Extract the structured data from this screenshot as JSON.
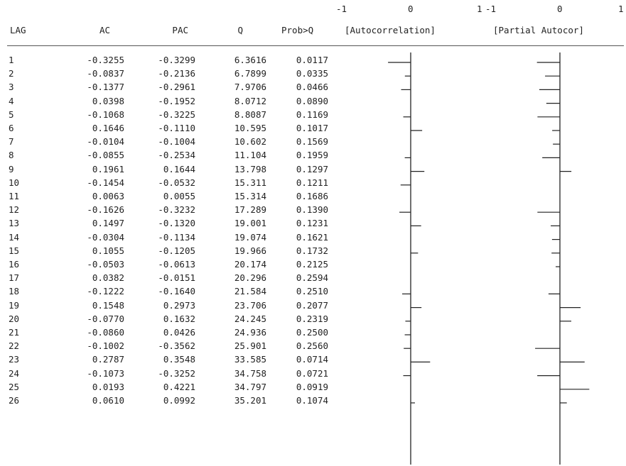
{
  "header": {
    "scale_ac": {
      "left": "-1",
      "mid": "0",
      "right": "1"
    },
    "scale_pac": {
      "left": "-1",
      "mid": "0",
      "right": "1"
    },
    "columns": {
      "lag": "LAG",
      "ac": "AC",
      "pac": "PAC",
      "q": "Q",
      "prob": "Prob>Q",
      "ac_plot": "[Autocorrelation]",
      "pac_plot": "[Partial Autocor]"
    }
  },
  "rows": [
    {
      "lag": "1",
      "ac": "-0.3255",
      "pac": "-0.3299",
      "q": "6.3616",
      "prob": "0.0117"
    },
    {
      "lag": "2",
      "ac": "-0.0837",
      "pac": "-0.2136",
      "q": "6.7899",
      "prob": "0.0335"
    },
    {
      "lag": "3",
      "ac": "-0.1377",
      "pac": "-0.2961",
      "q": "7.9706",
      "prob": "0.0466"
    },
    {
      "lag": "4",
      "ac": "0.0398",
      "pac": "-0.1952",
      "q": "8.0712",
      "prob": "0.0890"
    },
    {
      "lag": "5",
      "ac": "-0.1068",
      "pac": "-0.3225",
      "q": "8.8087",
      "prob": "0.1169"
    },
    {
      "lag": "6",
      "ac": "0.1646",
      "pac": "-0.1110",
      "q": "10.595",
      "prob": "0.1017"
    },
    {
      "lag": "7",
      "ac": "-0.0104",
      "pac": "-0.1004",
      "q": "10.602",
      "prob": "0.1569"
    },
    {
      "lag": "8",
      "ac": "-0.0855",
      "pac": "-0.2534",
      "q": "11.104",
      "prob": "0.1959"
    },
    {
      "lag": "9",
      "ac": "0.1961",
      "pac": "0.1644",
      "q": "13.798",
      "prob": "0.1297"
    },
    {
      "lag": "10",
      "ac": "-0.1454",
      "pac": "-0.0532",
      "q": "15.311",
      "prob": "0.1211"
    },
    {
      "lag": "11",
      "ac": "0.0063",
      "pac": "0.0055",
      "q": "15.314",
      "prob": "0.1686"
    },
    {
      "lag": "12",
      "ac": "-0.1626",
      "pac": "-0.3232",
      "q": "17.289",
      "prob": "0.1390"
    },
    {
      "lag": "13",
      "ac": "0.1497",
      "pac": "-0.1320",
      "q": "19.001",
      "prob": "0.1231"
    },
    {
      "lag": "14",
      "ac": "-0.0304",
      "pac": "-0.1134",
      "q": "19.074",
      "prob": "0.1621"
    },
    {
      "lag": "15",
      "ac": "0.1055",
      "pac": "-0.1205",
      "q": "19.966",
      "prob": "0.1732"
    },
    {
      "lag": "16",
      "ac": "-0.0503",
      "pac": "-0.0613",
      "q": "20.174",
      "prob": "0.2125"
    },
    {
      "lag": "17",
      "ac": "0.0382",
      "pac": "-0.0151",
      "q": "20.296",
      "prob": "0.2594"
    },
    {
      "lag": "18",
      "ac": "-0.1222",
      "pac": "-0.1640",
      "q": "21.584",
      "prob": "0.2510"
    },
    {
      "lag": "19",
      "ac": "0.1548",
      "pac": "0.2973",
      "q": "23.706",
      "prob": "0.2077"
    },
    {
      "lag": "20",
      "ac": "-0.0770",
      "pac": "0.1632",
      "q": "24.245",
      "prob": "0.2319"
    },
    {
      "lag": "21",
      "ac": "-0.0860",
      "pac": "0.0426",
      "q": "24.936",
      "prob": "0.2500"
    },
    {
      "lag": "22",
      "ac": "-0.1002",
      "pac": "-0.3562",
      "q": "25.901",
      "prob": "0.2560"
    },
    {
      "lag": "23",
      "ac": "0.2787",
      "pac": "0.3548",
      "q": "33.585",
      "prob": "0.0714"
    },
    {
      "lag": "24",
      "ac": "-0.1073",
      "pac": "-0.3252",
      "q": "34.758",
      "prob": "0.0721"
    },
    {
      "lag": "25",
      "ac": "0.0193",
      "pac": "0.4221",
      "q": "34.797",
      "prob": "0.0919"
    },
    {
      "lag": "26",
      "ac": "0.0610",
      "pac": "0.0992",
      "q": "35.201",
      "prob": "0.1074"
    }
  ]
}
